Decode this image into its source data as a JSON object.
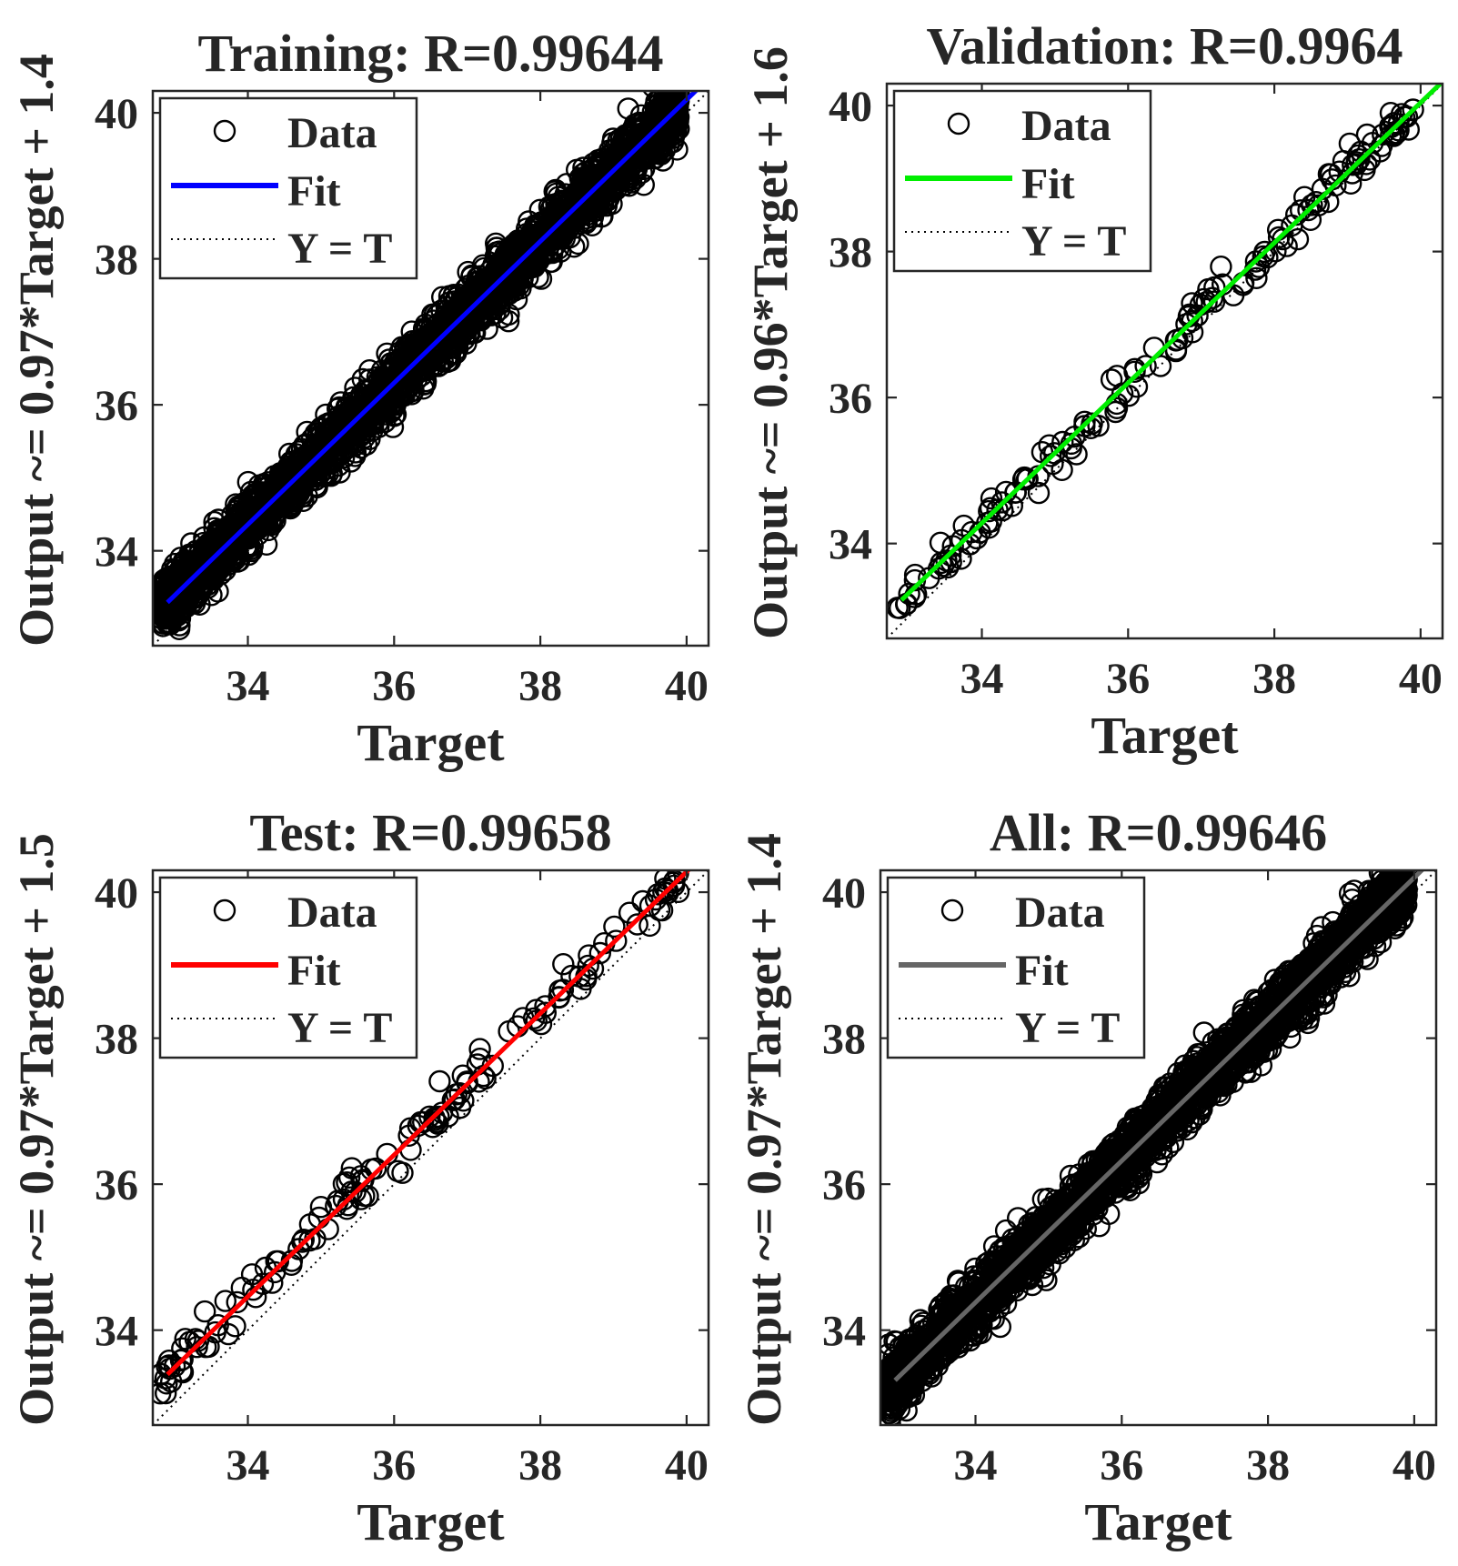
{
  "figure": {
    "background": "#ffffff",
    "axis_color": "#262626"
  },
  "chart_data": [
    {
      "type": "scatter",
      "title": "Training: R=0.99644",
      "xlabel": "Target",
      "ylabel": "Output ~= 0.97*Target + 1.4",
      "xlim": [
        32.7,
        40.3
      ],
      "ylim": [
        32.7,
        40.3
      ],
      "xticks": [
        34,
        36,
        38,
        40
      ],
      "yticks": [
        34,
        36,
        38,
        40
      ],
      "fit": {
        "slope": 0.97,
        "intercept": 1.38,
        "color": "#0000ff"
      },
      "data_color": "#000000",
      "n_points": 2600,
      "data_range": [
        32.8,
        39.9
      ],
      "spread": 0.2,
      "legend": {
        "position": "top-left",
        "entries": [
          "Data",
          "Fit",
          "Y = T"
        ]
      }
    },
    {
      "type": "scatter",
      "title": "Validation: R=0.9964",
      "xlabel": "Target",
      "ylabel": "Output ~= 0.96*Target + 1.6",
      "xlim": [
        32.7,
        40.3
      ],
      "ylim": [
        32.7,
        40.3
      ],
      "xticks": [
        34,
        36,
        38,
        40
      ],
      "yticks": [
        34,
        36,
        38,
        40
      ],
      "fit": {
        "slope": 0.96,
        "intercept": 1.64,
        "color": "#00ee00"
      },
      "data_color": "#000000",
      "n_points": 160,
      "data_range": [
        32.8,
        39.9
      ],
      "spread": 0.14,
      "legend": {
        "position": "top-left",
        "entries": [
          "Data",
          "Fit",
          "Y = T"
        ]
      }
    },
    {
      "type": "scatter",
      "title": "Test: R=0.99658",
      "xlabel": "Target",
      "ylabel": "Output ~= 0.97*Target + 1.5",
      "xlim": [
        32.7,
        40.3
      ],
      "ylim": [
        32.7,
        40.3
      ],
      "xticks": [
        34,
        36,
        38,
        40
      ],
      "yticks": [
        34,
        36,
        38,
        40
      ],
      "fit": {
        "slope": 0.97,
        "intercept": 1.48,
        "color": "#ff0000"
      },
      "data_color": "#000000",
      "n_points": 150,
      "data_range": [
        32.8,
        39.9
      ],
      "spread": 0.14,
      "legend": {
        "position": "top-left",
        "entries": [
          "Data",
          "Fit",
          "Y = T"
        ]
      }
    },
    {
      "type": "scatter",
      "title": "All: R=0.99646",
      "xlabel": "Target",
      "ylabel": "Output ~= 0.97*Target + 1.4",
      "xlim": [
        32.7,
        40.3
      ],
      "ylim": [
        32.7,
        40.3
      ],
      "xticks": [
        34,
        36,
        38,
        40
      ],
      "yticks": [
        34,
        36,
        38,
        40
      ],
      "fit": {
        "slope": 0.97,
        "intercept": 1.4,
        "color": "#666666"
      },
      "data_color": "#000000",
      "n_points": 3000,
      "data_range": [
        32.8,
        39.9
      ],
      "spread": 0.2,
      "legend": {
        "position": "top-left",
        "entries": [
          "Data",
          "Fit",
          "Y = T"
        ]
      }
    }
  ]
}
